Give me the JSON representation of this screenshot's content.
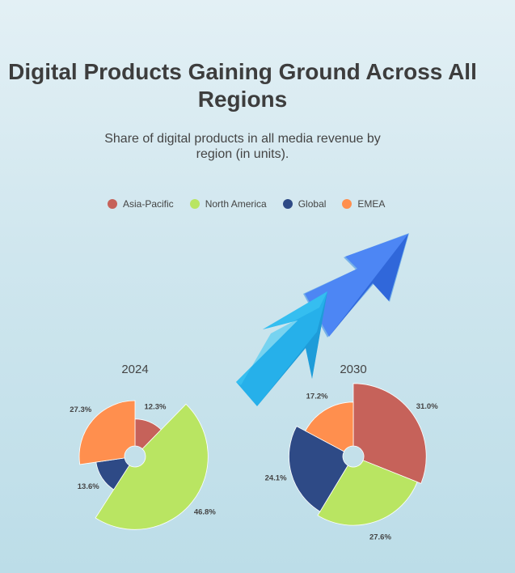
{
  "title": "Digital Products Gaining Ground Across All Regions",
  "subtitle": "Share of digital products in all media revenue by region (in units).",
  "colors": {
    "Asia-Pacific": "#c6625a",
    "North America": "#b9e562",
    "Global": "#2e4a86",
    "EMEA": "#ff8f4e"
  },
  "chart_data": {
    "type": "pie",
    "variant": "nightingale-rose (radius proportional to value, donut hole)",
    "legend": [
      "Asia-Pacific",
      "North America",
      "Global",
      "EMEA"
    ],
    "legend_position": "top",
    "decoration": "upward-trending-arrow-icon",
    "charts": [
      {
        "year": "2024",
        "slices": [
          {
            "name": "Asia-Pacific",
            "value": 12.3,
            "label": "12.3%"
          },
          {
            "name": "North America",
            "value": 46.8,
            "label": "46.8%"
          },
          {
            "name": "Global",
            "value": 13.6,
            "label": "13.6%"
          },
          {
            "name": "EMEA",
            "value": 27.3,
            "label": "27.3%"
          }
        ]
      },
      {
        "year": "2030",
        "slices": [
          {
            "name": "Asia-Pacific",
            "value": 31.0,
            "label": "31.0%"
          },
          {
            "name": "North America",
            "value": 27.6,
            "label": "27.6%"
          },
          {
            "name": "Global",
            "value": 24.1,
            "label": "24.1%"
          },
          {
            "name": "EMEA",
            "value": 17.2,
            "label": "17.2%"
          }
        ]
      }
    ]
  }
}
